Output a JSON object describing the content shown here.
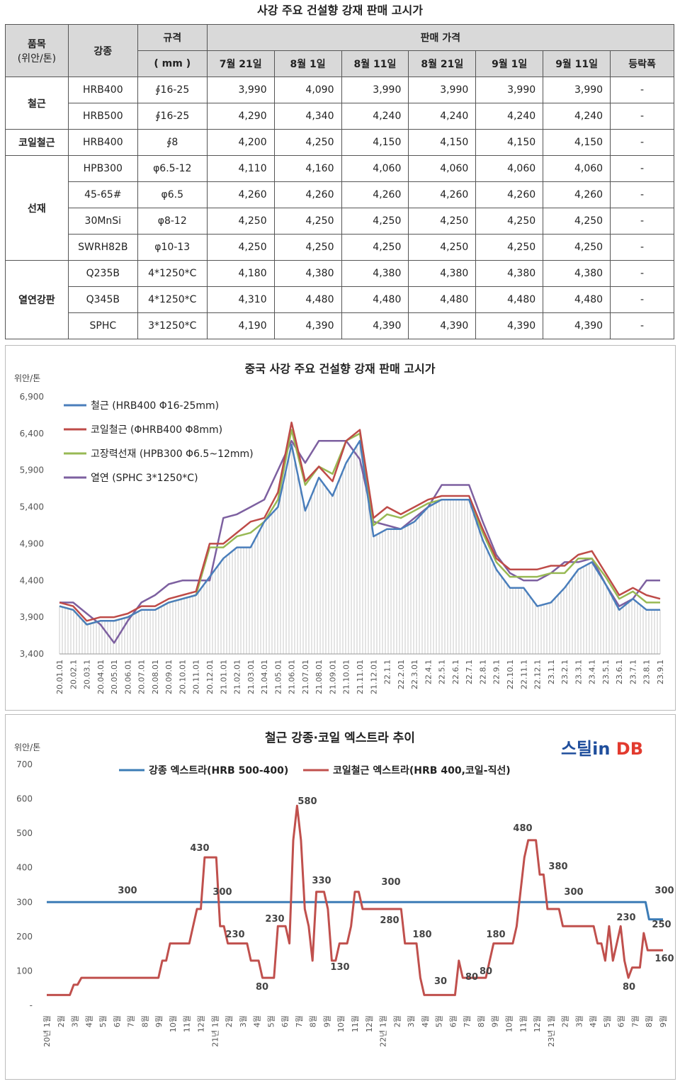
{
  "page_title": "사강 주요 건설향 강재 판매 고시가",
  "table": {
    "h_item": "품목",
    "h_unit": "(위안/톤)",
    "h_grade": "강종",
    "h_spec": "규격",
    "h_spec_unit": "( mm )",
    "h_price": "판매 가격",
    "dates": [
      "7월 21일",
      "8월 1일",
      "8월 11일",
      "8월 21일",
      "9월 1일",
      "9월 11일",
      "등락폭"
    ],
    "groups": [
      {
        "name": "철근",
        "rows": [
          {
            "grade": "HRB400",
            "spec": "∮16-25",
            "prices": [
              "3,990",
              "4,090",
              "3,990",
              "3,990",
              "3,990",
              "3,990"
            ],
            "change": "-"
          },
          {
            "grade": "HRB500",
            "spec": "∮16-25",
            "prices": [
              "4,290",
              "4,340",
              "4,240",
              "4,240",
              "4,240",
              "4,240"
            ],
            "change": "-"
          }
        ]
      },
      {
        "name": "코일철근",
        "rows": [
          {
            "grade": "HRB400",
            "spec": "∮8",
            "prices": [
              "4,200",
              "4,250",
              "4,150",
              "4,150",
              "4,150",
              "4,150"
            ],
            "change": "-"
          }
        ]
      },
      {
        "name": "선재",
        "rows": [
          {
            "grade": "HPB300",
            "spec": "φ6.5-12",
            "prices": [
              "4,110",
              "4,160",
              "4,060",
              "4,060",
              "4,060",
              "4,060"
            ],
            "change": "-"
          },
          {
            "grade": "45-65#",
            "spec": "φ6.5",
            "prices": [
              "4,260",
              "4,260",
              "4,260",
              "4,260",
              "4,260",
              "4,260"
            ],
            "change": "-"
          },
          {
            "grade": "30MnSi",
            "spec": "φ8-12",
            "prices": [
              "4,250",
              "4,250",
              "4,250",
              "4,250",
              "4,250",
              "4,250"
            ],
            "change": "-"
          },
          {
            "grade": "SWRH82B",
            "spec": "φ10-13",
            "prices": [
              "4,250",
              "4,250",
              "4,250",
              "4,250",
              "4,250",
              "4,250"
            ],
            "change": "-"
          }
        ]
      },
      {
        "name": "열연강판",
        "rows": [
          {
            "grade": "Q235B",
            "spec": "4*1250*C",
            "prices": [
              "4,180",
              "4,380",
              "4,380",
              "4,380",
              "4,380",
              "4,380"
            ],
            "change": "-"
          },
          {
            "grade": "Q345B",
            "spec": "4*1250*C",
            "prices": [
              "4,310",
              "4,480",
              "4,480",
              "4,480",
              "4,480",
              "4,480"
            ],
            "change": "-"
          },
          {
            "grade": "SPHC",
            "spec": "3*1250*C",
            "prices": [
              "4,190",
              "4,390",
              "4,390",
              "4,390",
              "4,390",
              "4,390"
            ],
            "change": "-"
          }
        ]
      }
    ]
  },
  "chart_data": [
    {
      "type": "line",
      "title": "중국 사강 주요 건설향 강재 판매 고시가",
      "ylabel": "위안/톤",
      "ylim": [
        3400,
        6900
      ],
      "yticks": [
        "3,400",
        "3,900",
        "4,400",
        "4,900",
        "5,400",
        "5,900",
        "6,400",
        "6,900"
      ],
      "legend_position": "top-left",
      "x_labels": [
        "20.01.01",
        "20.02.1",
        "20.03.1",
        "20.04.01",
        "20.05.01",
        "20.06.01",
        "20.07.01",
        "20.08.01",
        "20.09.01",
        "20.10.01",
        "20.11.01",
        "20.12.01",
        "21.01.01",
        "21.02.01",
        "21.03.01",
        "21.04.01",
        "21.05.01",
        "21.06.01",
        "21.07.01",
        "21.08.01",
        "21.09.01",
        "21.10.01",
        "21.11.01",
        "21.12.01",
        "22.1.1",
        "22.2.01",
        "22.3.01",
        "22.4.1",
        "22.5.1",
        "22.6.1",
        "22.7.1",
        "22.8.1",
        "22.9.1",
        "22.10.1",
        "22.11.1",
        "22.12.1",
        "23.1.1",
        "23.2.1",
        "23.3.1",
        "23.4.1",
        "23.5.1",
        "23.6.1",
        "23.7.1",
        "23.8.1",
        "23.9.1"
      ],
      "series": [
        {
          "name": "철근 (HRB400 Φ16-25mm)",
          "color": "#4a7ebb",
          "values": [
            4050,
            4000,
            3800,
            3850,
            3850,
            3900,
            4000,
            4000,
            4100,
            4150,
            4200,
            4450,
            4700,
            4850,
            4850,
            5200,
            5400,
            6250,
            5350,
            5800,
            5550,
            6000,
            6300,
            5000,
            5100,
            5100,
            5200,
            5400,
            5500,
            5500,
            5500,
            4950,
            4550,
            4300,
            4300,
            4050,
            4100,
            4300,
            4550,
            4650,
            4350,
            4000,
            4150,
            4000,
            4000
          ]
        },
        {
          "name": "코일철근 (ΦHRB400 Φ8mm)",
          "color": "#be4b48",
          "values": [
            4100,
            4050,
            3850,
            3900,
            3900,
            3950,
            4050,
            4050,
            4150,
            4200,
            4250,
            4900,
            4900,
            5050,
            5200,
            5250,
            5600,
            6550,
            5750,
            5950,
            5750,
            6300,
            6450,
            5250,
            5400,
            5300,
            5400,
            5500,
            5550,
            5550,
            5550,
            5100,
            4700,
            4550,
            4550,
            4550,
            4600,
            4600,
            4750,
            4800,
            4500,
            4200,
            4300,
            4200,
            4150
          ]
        },
        {
          "name": "고장력선재 (HPB300 Φ6.5~12mm)",
          "color": "#98b954",
          "values": [
            4050,
            4000,
            3800,
            3850,
            3850,
            3900,
            4000,
            4000,
            4100,
            4150,
            4200,
            4850,
            4850,
            5000,
            5050,
            5200,
            5500,
            6450,
            5700,
            5950,
            5850,
            6300,
            6400,
            5150,
            5300,
            5250,
            5350,
            5450,
            5500,
            5500,
            5500,
            5050,
            4650,
            4450,
            4450,
            4450,
            4500,
            4500,
            4700,
            4700,
            4450,
            4150,
            4250,
            4100,
            4100
          ]
        },
        {
          "name": "열연 (SPHC 3*1250*C)",
          "color": "#7d60a0",
          "values": [
            4100,
            4100,
            3950,
            3800,
            3550,
            3850,
            4100,
            4200,
            4350,
            4400,
            4400,
            4400,
            5250,
            5300,
            5400,
            5500,
            5900,
            6300,
            6000,
            6300,
            6300,
            6300,
            6050,
            5200,
            5150,
            5100,
            5250,
            5400,
            5700,
            5700,
            5700,
            5200,
            4750,
            4500,
            4400,
            4400,
            4500,
            4650,
            4650,
            4700,
            4350,
            4050,
            4150,
            4400,
            4400
          ]
        }
      ]
    },
    {
      "type": "line",
      "title": "철근 강종·코일 엑스트라 추이",
      "ylabel": "위안/톤",
      "ylim": [
        0,
        700
      ],
      "yticks": [
        "-",
        "100",
        "200",
        "300",
        "400",
        "500",
        "600",
        "700"
      ],
      "legend_position": "top",
      "logo_text": "스틸in DB",
      "x_tick_labels": [
        "20년 1월",
        "2월",
        "3월",
        "4월",
        "5월",
        "6월",
        "7월",
        "8월",
        "9월",
        "10월",
        "11월",
        "12월",
        "21년 1월",
        "2월",
        "3월",
        "4월",
        "5월",
        "6월",
        "7월",
        "8월",
        "9월",
        "10월",
        "11월",
        "12월",
        "22년 1월",
        "2월",
        "3월",
        "4월",
        "5월",
        "6월",
        "7월",
        "8월",
        "9월",
        "10월",
        "11월",
        "12월",
        "23년 1월",
        "2월",
        "3월",
        "4월",
        "5월",
        "6월",
        "7월",
        "8월",
        "9월"
      ],
      "series": [
        {
          "name": "강종 엑스트라(HRB 500-400)",
          "color": "#3c7cb6",
          "values": [
            300,
            300,
            300,
            300,
            300,
            300,
            300,
            300,
            300,
            300,
            300,
            300,
            300,
            300,
            300,
            300,
            300,
            300,
            300,
            300,
            300,
            300,
            300,
            300,
            300,
            300,
            300,
            300,
            300,
            300,
            300,
            300,
            300,
            300,
            300,
            300,
            300,
            300,
            300,
            300,
            300,
            300,
            300,
            300,
            300,
            300,
            300,
            300,
            300,
            300,
            300,
            300,
            300,
            300,
            300,
            300,
            300,
            300,
            300,
            300,
            300,
            300,
            300,
            300,
            300,
            300,
            300,
            300,
            300,
            300,
            300,
            300,
            300,
            300,
            300,
            300,
            300,
            300,
            300,
            300,
            300,
            300,
            300,
            300,
            300,
            300,
            300,
            300,
            300,
            300,
            300,
            300,
            300,
            300,
            300,
            300,
            300,
            300,
            300,
            300,
            300,
            300,
            300,
            300,
            300,
            300,
            300,
            300,
            300,
            300,
            300,
            300,
            300,
            300,
            300,
            300,
            300,
            300,
            300,
            300,
            300,
            300,
            300,
            300,
            300,
            300,
            300,
            300,
            300,
            300,
            300,
            300,
            300,
            300,
            300,
            300,
            300,
            300,
            300,
            300,
            300,
            300,
            300,
            300,
            300,
            300,
            300,
            300,
            300,
            300,
            300,
            300,
            300,
            300,
            300,
            300,
            300,
            300,
            300,
            300,
            300,
            300,
            300,
            300,
            300,
            300,
            300,
            300,
            300,
            300,
            300,
            300,
            300,
            250,
            250,
            250,
            250,
            250
          ]
        },
        {
          "name": "코일철근 엑스트라(HRB 400,코일-직선)",
          "color": "#c0504d",
          "values": [
            30,
            30,
            30,
            30,
            30,
            30,
            30,
            60,
            60,
            80,
            80,
            80,
            80,
            80,
            80,
            80,
            80,
            80,
            80,
            80,
            80,
            80,
            80,
            80,
            80,
            80,
            80,
            80,
            80,
            80,
            130,
            130,
            180,
            180,
            180,
            180,
            180,
            180,
            230,
            280,
            280,
            430,
            430,
            430,
            430,
            230,
            230,
            180,
            180,
            180,
            180,
            180,
            180,
            130,
            130,
            130,
            80,
            80,
            80,
            80,
            230,
            230,
            230,
            180,
            480,
            580,
            480,
            280,
            230,
            130,
            330,
            330,
            330,
            280,
            130,
            130,
            180,
            180,
            180,
            230,
            330,
            330,
            280,
            280,
            280,
            280,
            280,
            280,
            280,
            280,
            280,
            280,
            280,
            180,
            180,
            180,
            180,
            80,
            30,
            30,
            30,
            30,
            30,
            30,
            30,
            30,
            30,
            130,
            80,
            80,
            80,
            80,
            80,
            80,
            80,
            130,
            180,
            180,
            180,
            180,
            180,
            180,
            230,
            330,
            430,
            480,
            480,
            480,
            380,
            380,
            280,
            280,
            280,
            280,
            230,
            230,
            230,
            230,
            230,
            230,
            230,
            230,
            230,
            180,
            180,
            130,
            230,
            130,
            180,
            230,
            130,
            80,
            110,
            110,
            110,
            210,
            160,
            160,
            160,
            160,
            160
          ]
        }
      ],
      "annotations": [
        "300",
        "430",
        "300",
        "230",
        "80",
        "230",
        "580",
        "330",
        "130",
        "300",
        "280",
        "180",
        "30",
        "80",
        "80",
        "180",
        "480",
        "380",
        "300",
        "230",
        "300",
        "250",
        "80",
        "160"
      ]
    }
  ]
}
